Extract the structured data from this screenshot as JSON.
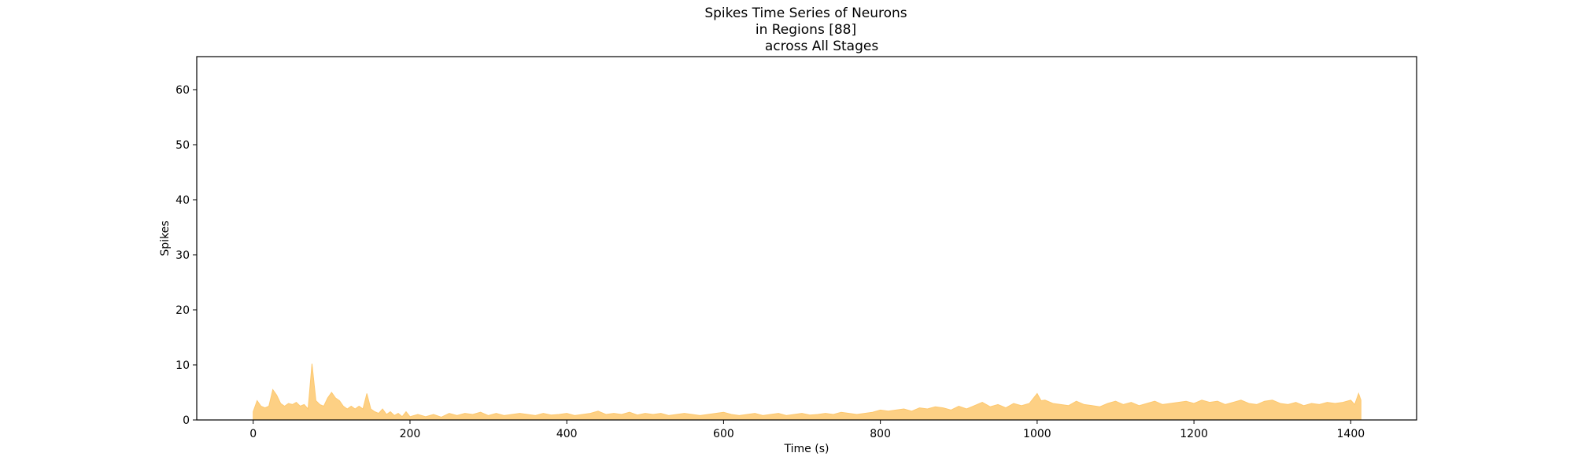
{
  "chart_data": {
    "type": "area",
    "title": "Spikes Time Series of Neurons",
    "title_lines": [
      "Spikes Time Series of Neurons",
      "in Regions [88]",
      "across All Stages"
    ],
    "xlabel": "Time (s)",
    "ylabel": "Spikes",
    "xlim": [
      -72,
      1484
    ],
    "ylim": [
      0,
      66
    ],
    "xticks": [
      0,
      200,
      400,
      600,
      800,
      1000,
      1200,
      1400
    ],
    "yticks": [
      0,
      10,
      20,
      30,
      40,
      50,
      60
    ],
    "grid": false,
    "legend": "none",
    "series": [
      {
        "color": "#fdc86f",
        "x": [
          0,
          5,
          10,
          15,
          20,
          25,
          30,
          35,
          40,
          45,
          50,
          55,
          60,
          65,
          70,
          75,
          80,
          85,
          90,
          95,
          100,
          105,
          110,
          115,
          120,
          125,
          130,
          135,
          140,
          145,
          150,
          155,
          160,
          165,
          170,
          175,
          180,
          185,
          190,
          195,
          200,
          210,
          220,
          230,
          240,
          250,
          260,
          270,
          280,
          290,
          300,
          310,
          320,
          330,
          340,
          350,
          360,
          370,
          380,
          390,
          400,
          410,
          420,
          430,
          440,
          450,
          460,
          470,
          480,
          490,
          500,
          510,
          520,
          530,
          540,
          550,
          560,
          570,
          580,
          590,
          600,
          610,
          620,
          630,
          640,
          650,
          660,
          670,
          680,
          690,
          700,
          710,
          720,
          730,
          740,
          750,
          760,
          770,
          780,
          790,
          800,
          810,
          820,
          830,
          840,
          850,
          860,
          870,
          880,
          890,
          900,
          910,
          920,
          930,
          940,
          950,
          960,
          970,
          980,
          990,
          1000,
          1005,
          1010,
          1020,
          1030,
          1040,
          1050,
          1060,
          1070,
          1080,
          1090,
          1100,
          1110,
          1120,
          1130,
          1140,
          1150,
          1160,
          1170,
          1180,
          1190,
          1200,
          1210,
          1220,
          1230,
          1240,
          1250,
          1260,
          1270,
          1280,
          1290,
          1300,
          1310,
          1320,
          1330,
          1340,
          1350,
          1360,
          1370,
          1380,
          1390,
          1400,
          1405,
          1410,
          1413
        ],
        "values": [
          1.5,
          3.5,
          2.5,
          2.2,
          2.5,
          5.5,
          4.5,
          3.0,
          2.5,
          3.0,
          2.8,
          3.2,
          2.5,
          2.8,
          2.0,
          10.2,
          3.5,
          2.8,
          2.5,
          4.0,
          5.0,
          4.0,
          3.5,
          2.5,
          2.0,
          2.5,
          2.0,
          2.5,
          2.0,
          4.8,
          2.0,
          1.5,
          1.2,
          2.0,
          1.0,
          1.5,
          0.8,
          1.2,
          0.6,
          1.5,
          0.6,
          1.0,
          0.6,
          1.0,
          0.5,
          1.2,
          0.8,
          1.2,
          1.0,
          1.4,
          0.8,
          1.2,
          0.8,
          1.0,
          1.2,
          1.0,
          0.8,
          1.2,
          0.9,
          1.0,
          1.2,
          0.8,
          1.0,
          1.2,
          1.6,
          1.0,
          1.2,
          1.0,
          1.4,
          0.9,
          1.2,
          1.0,
          1.2,
          0.8,
          1.0,
          1.2,
          1.0,
          0.8,
          1.0,
          1.2,
          1.4,
          1.0,
          0.8,
          1.0,
          1.2,
          0.8,
          1.0,
          1.2,
          0.8,
          1.0,
          1.2,
          0.9,
          1.0,
          1.2,
          1.0,
          1.4,
          1.2,
          1.0,
          1.2,
          1.4,
          1.8,
          1.6,
          1.8,
          2.0,
          1.6,
          2.2,
          2.0,
          2.4,
          2.2,
          1.8,
          2.5,
          2.0,
          2.6,
          3.2,
          2.4,
          2.8,
          2.2,
          3.0,
          2.6,
          3.0,
          4.8,
          3.5,
          3.6,
          3.0,
          2.8,
          2.6,
          3.4,
          2.8,
          2.6,
          2.4,
          3.0,
          3.4,
          2.8,
          3.2,
          2.6,
          3.0,
          3.4,
          2.8,
          3.0,
          3.2,
          3.4,
          3.0,
          3.6,
          3.2,
          3.4,
          2.8,
          3.2,
          3.6,
          3.0,
          2.8,
          3.4,
          3.6,
          3.0,
          2.8,
          3.2,
          2.6,
          3.0,
          2.8,
          3.2,
          3.0,
          3.2,
          3.6,
          2.8,
          4.8,
          3.6
        ]
      }
    ]
  }
}
